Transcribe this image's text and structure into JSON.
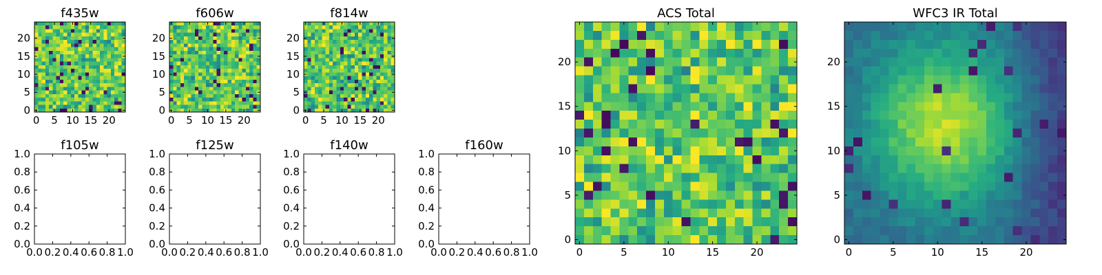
{
  "figure": {
    "background": "#ffffff",
    "colormap": "viridis"
  },
  "chart_data": [
    {
      "type": "heatmap",
      "title": "f435w",
      "xticks": [
        0,
        5,
        10,
        15,
        20
      ],
      "yticks": [
        0,
        5,
        10,
        15,
        20
      ],
      "xlim": [
        -0.5,
        24.5
      ],
      "ylim": [
        -0.5,
        24.5
      ],
      "grid_size": 25,
      "texture": "random-noise",
      "grid": false
    },
    {
      "type": "heatmap",
      "title": "f606w",
      "xticks": [
        0,
        5,
        10,
        15,
        20
      ],
      "yticks": [
        0,
        5,
        10,
        15,
        20
      ],
      "xlim": [
        -0.5,
        24.5
      ],
      "ylim": [
        -0.5,
        24.5
      ],
      "grid_size": 25,
      "texture": "random-noise",
      "grid": false
    },
    {
      "type": "heatmap",
      "title": "f814w",
      "xticks": [
        0,
        5,
        10,
        15,
        20
      ],
      "yticks": [
        0,
        5,
        10,
        15,
        20
      ],
      "xlim": [
        -0.5,
        24.5
      ],
      "ylim": [
        -0.5,
        24.5
      ],
      "grid_size": 25,
      "texture": "random-noise",
      "grid": false
    },
    {
      "type": "scatter",
      "title": "f105w",
      "xticks": [
        "0.0",
        "0.2",
        "0.4",
        "0.6",
        "0.8",
        "1.0"
      ],
      "yticks": [
        "0.0",
        "0.2",
        "0.4",
        "0.6",
        "0.8",
        "1.0"
      ],
      "xlim": [
        0,
        1
      ],
      "ylim": [
        0,
        1
      ],
      "series": [],
      "grid": false
    },
    {
      "type": "scatter",
      "title": "f125w",
      "xticks": [
        "0.0",
        "0.2",
        "0.4",
        "0.6",
        "0.8",
        "1.0"
      ],
      "yticks": [
        "0.0",
        "0.2",
        "0.4",
        "0.6",
        "0.8",
        "1.0"
      ],
      "xlim": [
        0,
        1
      ],
      "ylim": [
        0,
        1
      ],
      "series": [],
      "grid": false
    },
    {
      "type": "scatter",
      "title": "f140w",
      "xticks": [
        "0.0",
        "0.2",
        "0.4",
        "0.6",
        "0.8",
        "1.0"
      ],
      "yticks": [
        "0.0",
        "0.2",
        "0.4",
        "0.6",
        "0.8",
        "1.0"
      ],
      "xlim": [
        0,
        1
      ],
      "ylim": [
        0,
        1
      ],
      "series": [],
      "grid": false
    },
    {
      "type": "scatter",
      "title": "f160w",
      "xticks": [
        "0.0",
        "0.2",
        "0.4",
        "0.6",
        "0.8",
        "1.0"
      ],
      "yticks": [
        "0.0",
        "0.2",
        "0.4",
        "0.6",
        "0.8",
        "1.0"
      ],
      "xlim": [
        0,
        1
      ],
      "ylim": [
        0,
        1
      ],
      "series": [],
      "grid": false
    },
    {
      "type": "heatmap",
      "title": "ACS Total",
      "xticks": [
        0,
        5,
        10,
        15,
        20
      ],
      "yticks": [
        0,
        5,
        10,
        15,
        20
      ],
      "xlim": [
        -0.5,
        24.5
      ],
      "ylim": [
        -0.5,
        24.5
      ],
      "grid_size": 25,
      "texture": "random-noise",
      "grid": false
    },
    {
      "type": "heatmap",
      "title": "WFC3 IR Total",
      "xticks": [
        0,
        5,
        10,
        15,
        20
      ],
      "yticks": [
        0,
        5,
        10,
        15,
        20
      ],
      "xlim": [
        -0.5,
        24.5
      ],
      "ylim": [
        -0.5,
        24.5
      ],
      "grid_size": 25,
      "texture": "smooth-blob",
      "grid": false
    }
  ]
}
